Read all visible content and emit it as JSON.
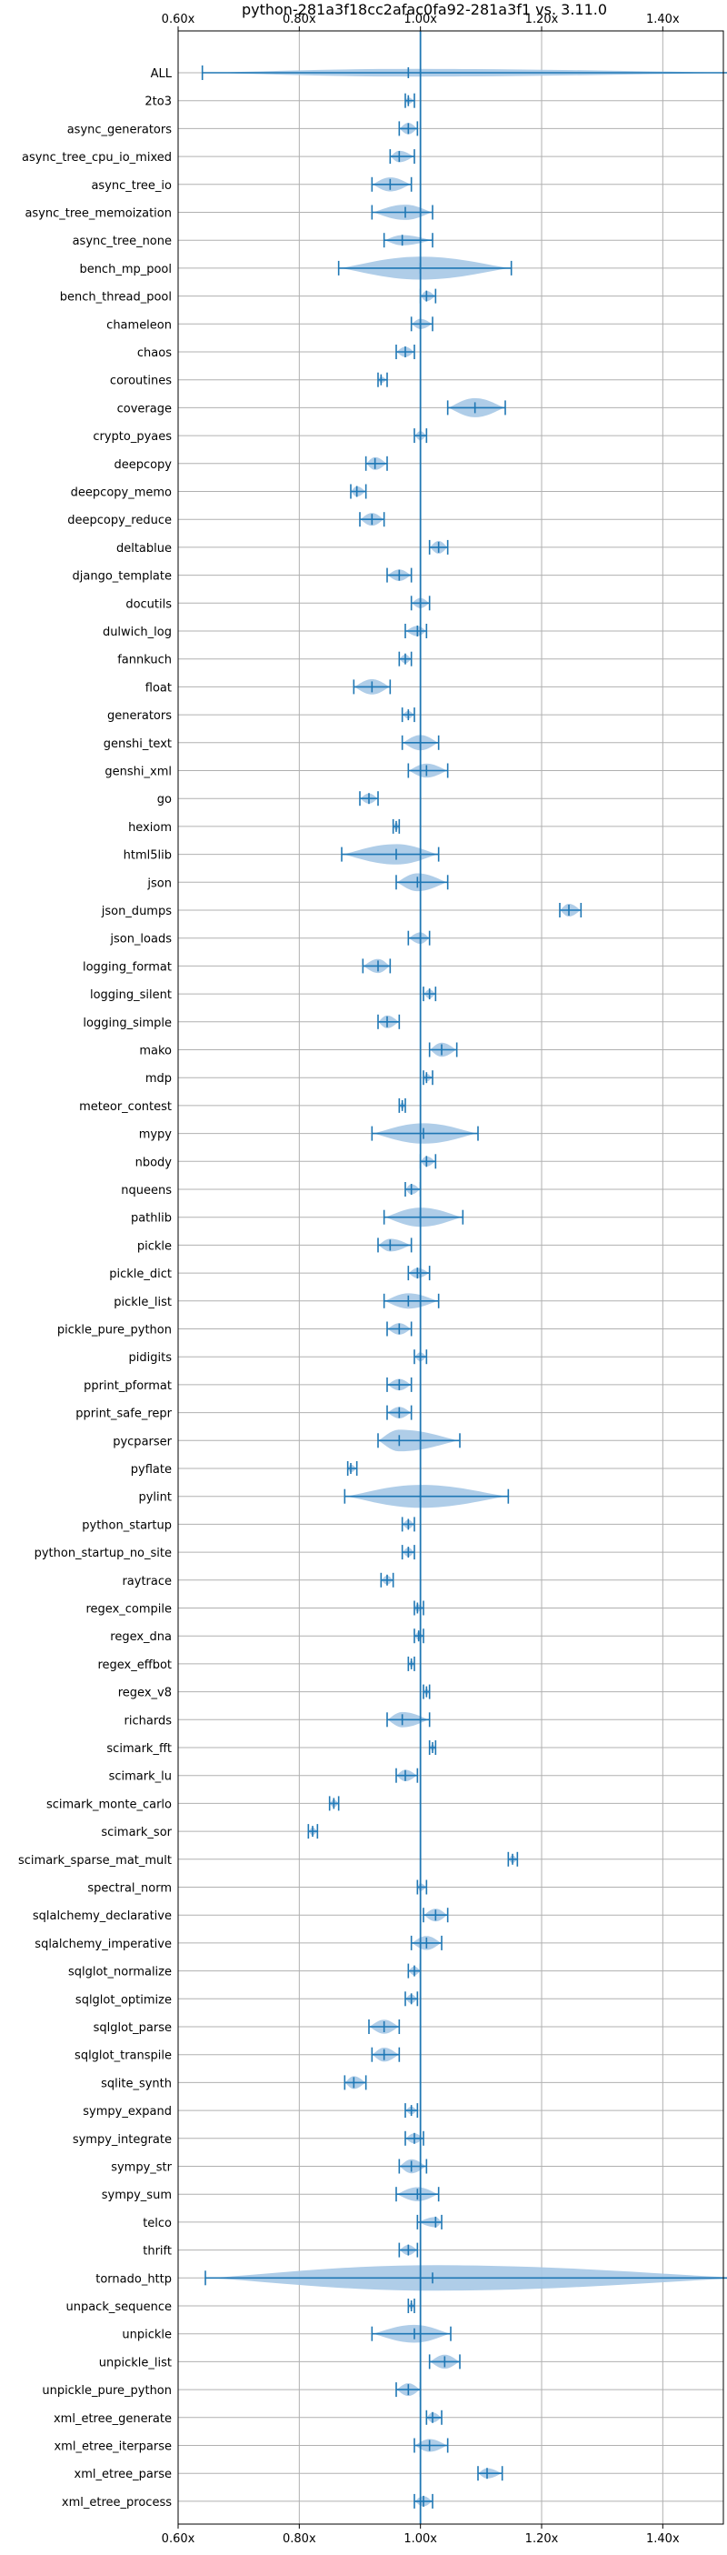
{
  "chart_data": {
    "type": "violin",
    "title": "python-281a3f18cc2afac0fa92-281a3f1 vs. 3.11.0",
    "xlim": [
      0.6,
      1.5
    ],
    "xticks": [
      0.6,
      0.8,
      1.0,
      1.2,
      1.4
    ],
    "xtick_labels": [
      "0.60x",
      "0.80x",
      "1.00x",
      "1.20x",
      "1.40x"
    ],
    "reference_line": 1.0,
    "grid": true,
    "colors": {
      "violin": "#a6c8e6",
      "line": "#1f77b4",
      "axes": "#000000",
      "grid": "#b0b0b0"
    },
    "series": [
      {
        "name": "ALL",
        "min": 0.64,
        "max": 1.54,
        "median": 0.98,
        "width": 0.3
      },
      {
        "name": "2to3",
        "min": 0.975,
        "max": 0.99,
        "median": 0.98,
        "width": 0.25
      },
      {
        "name": "async_generators",
        "min": 0.965,
        "max": 0.995,
        "median": 0.98,
        "width": 0.45
      },
      {
        "name": "async_tree_cpu_io_mixed",
        "min": 0.95,
        "max": 0.99,
        "median": 0.965,
        "width": 0.45
      },
      {
        "name": "async_tree_io",
        "min": 0.92,
        "max": 0.985,
        "median": 0.95,
        "width": 0.55
      },
      {
        "name": "async_tree_memoization",
        "min": 0.92,
        "max": 1.02,
        "median": 0.975,
        "width": 0.6
      },
      {
        "name": "async_tree_none",
        "min": 0.94,
        "max": 1.02,
        "median": 0.97,
        "width": 0.4
      },
      {
        "name": "bench_mp_pool",
        "min": 0.865,
        "max": 1.15,
        "median": 1.0,
        "width": 0.9
      },
      {
        "name": "bench_thread_pool",
        "min": 1.0,
        "max": 1.025,
        "median": 1.01,
        "width": 0.4
      },
      {
        "name": "chameleon",
        "min": 0.985,
        "max": 1.02,
        "median": 1.0,
        "width": 0.4
      },
      {
        "name": "chaos",
        "min": 0.96,
        "max": 0.99,
        "median": 0.975,
        "width": 0.4
      },
      {
        "name": "coroutines",
        "min": 0.93,
        "max": 0.945,
        "median": 0.935,
        "width": 0.25
      },
      {
        "name": "coverage",
        "min": 1.045,
        "max": 1.14,
        "median": 1.09,
        "width": 0.75
      },
      {
        "name": "crypto_pyaes",
        "min": 0.99,
        "max": 1.01,
        "median": 1.0,
        "width": 0.35
      },
      {
        "name": "deepcopy",
        "min": 0.91,
        "max": 0.945,
        "median": 0.925,
        "width": 0.5
      },
      {
        "name": "deepcopy_memo",
        "min": 0.885,
        "max": 0.91,
        "median": 0.895,
        "width": 0.4
      },
      {
        "name": "deepcopy_reduce",
        "min": 0.9,
        "max": 0.94,
        "median": 0.92,
        "width": 0.5
      },
      {
        "name": "deltablue",
        "min": 1.015,
        "max": 1.045,
        "median": 1.03,
        "width": 0.5
      },
      {
        "name": "django_template",
        "min": 0.945,
        "max": 0.985,
        "median": 0.965,
        "width": 0.45
      },
      {
        "name": "docutils",
        "min": 0.985,
        "max": 1.015,
        "median": 1.0,
        "width": 0.4
      },
      {
        "name": "dulwich_log",
        "min": 0.975,
        "max": 1.01,
        "median": 0.995,
        "width": 0.4
      },
      {
        "name": "fannkuch",
        "min": 0.965,
        "max": 0.985,
        "median": 0.975,
        "width": 0.35
      },
      {
        "name": "float",
        "min": 0.89,
        "max": 0.95,
        "median": 0.92,
        "width": 0.6
      },
      {
        "name": "generators",
        "min": 0.97,
        "max": 0.99,
        "median": 0.98,
        "width": 0.3
      },
      {
        "name": "genshi_text",
        "min": 0.97,
        "max": 1.03,
        "median": 1.0,
        "width": 0.6
      },
      {
        "name": "genshi_xml",
        "min": 0.98,
        "max": 1.045,
        "median": 1.01,
        "width": 0.55
      },
      {
        "name": "go",
        "min": 0.9,
        "max": 0.93,
        "median": 0.915,
        "width": 0.4
      },
      {
        "name": "hexiom",
        "min": 0.955,
        "max": 0.965,
        "median": 0.96,
        "width": 0.3
      },
      {
        "name": "html5lib",
        "min": 0.87,
        "max": 1.03,
        "median": 0.96,
        "width": 0.8
      },
      {
        "name": "json",
        "min": 0.96,
        "max": 1.045,
        "median": 0.995,
        "width": 0.7
      },
      {
        "name": "json_dumps",
        "min": 1.23,
        "max": 1.265,
        "median": 1.245,
        "width": 0.5
      },
      {
        "name": "json_loads",
        "min": 0.98,
        "max": 1.015,
        "median": 1.0,
        "width": 0.45
      },
      {
        "name": "logging_format",
        "min": 0.905,
        "max": 0.95,
        "median": 0.93,
        "width": 0.55
      },
      {
        "name": "logging_silent",
        "min": 1.005,
        "max": 1.025,
        "median": 1.015,
        "width": 0.35
      },
      {
        "name": "logging_simple",
        "min": 0.93,
        "max": 0.965,
        "median": 0.945,
        "width": 0.5
      },
      {
        "name": "mako",
        "min": 1.015,
        "max": 1.06,
        "median": 1.035,
        "width": 0.55
      },
      {
        "name": "mdp",
        "min": 1.005,
        "max": 1.02,
        "median": 1.01,
        "width": 0.3
      },
      {
        "name": "meteor_contest",
        "min": 0.965,
        "max": 0.975,
        "median": 0.97,
        "width": 0.25
      },
      {
        "name": "mypy",
        "min": 0.92,
        "max": 1.095,
        "median": 1.005,
        "width": 0.8
      },
      {
        "name": "nbody",
        "min": 1.0,
        "max": 1.025,
        "median": 1.01,
        "width": 0.4
      },
      {
        "name": "nqueens",
        "min": 0.975,
        "max": 1.0,
        "median": 0.985,
        "width": 0.4
      },
      {
        "name": "pathlib",
        "min": 0.94,
        "max": 1.07,
        "median": 1.0,
        "width": 0.75
      },
      {
        "name": "pickle",
        "min": 0.93,
        "max": 0.985,
        "median": 0.95,
        "width": 0.5
      },
      {
        "name": "pickle_dict",
        "min": 0.98,
        "max": 1.015,
        "median": 0.995,
        "width": 0.4
      },
      {
        "name": "pickle_list",
        "min": 0.94,
        "max": 1.03,
        "median": 0.98,
        "width": 0.6
      },
      {
        "name": "pickle_pure_python",
        "min": 0.945,
        "max": 0.985,
        "median": 0.965,
        "width": 0.45
      },
      {
        "name": "pidigits",
        "min": 0.99,
        "max": 1.01,
        "median": 1.0,
        "width": 0.35
      },
      {
        "name": "pprint_pformat",
        "min": 0.945,
        "max": 0.985,
        "median": 0.965,
        "width": 0.45
      },
      {
        "name": "pprint_safe_repr",
        "min": 0.945,
        "max": 0.985,
        "median": 0.965,
        "width": 0.45
      },
      {
        "name": "pycparser",
        "min": 0.93,
        "max": 1.065,
        "median": 0.965,
        "width": 0.85
      },
      {
        "name": "pyflate",
        "min": 0.88,
        "max": 0.895,
        "median": 0.885,
        "width": 0.3
      },
      {
        "name": "pylint",
        "min": 0.875,
        "max": 1.145,
        "median": 1.0,
        "width": 0.9
      },
      {
        "name": "python_startup",
        "min": 0.97,
        "max": 0.99,
        "median": 0.98,
        "width": 0.35
      },
      {
        "name": "python_startup_no_site",
        "min": 0.97,
        "max": 0.99,
        "median": 0.98,
        "width": 0.35
      },
      {
        "name": "raytrace",
        "min": 0.935,
        "max": 0.955,
        "median": 0.945,
        "width": 0.35
      },
      {
        "name": "regex_compile",
        "min": 0.99,
        "max": 1.005,
        "median": 0.995,
        "width": 0.3
      },
      {
        "name": "regex_dna",
        "min": 0.99,
        "max": 1.005,
        "median": 0.997,
        "width": 0.3
      },
      {
        "name": "regex_effbot",
        "min": 0.98,
        "max": 0.99,
        "median": 0.985,
        "width": 0.25
      },
      {
        "name": "regex_v8",
        "min": 1.005,
        "max": 1.015,
        "median": 1.01,
        "width": 0.25
      },
      {
        "name": "richards",
        "min": 0.945,
        "max": 1.015,
        "median": 0.97,
        "width": 0.6
      },
      {
        "name": "scimark_fft",
        "min": 1.015,
        "max": 1.025,
        "median": 1.02,
        "width": 0.25
      },
      {
        "name": "scimark_lu",
        "min": 0.96,
        "max": 0.995,
        "median": 0.975,
        "width": 0.45
      },
      {
        "name": "scimark_monte_carlo",
        "min": 0.85,
        "max": 0.865,
        "median": 0.857,
        "width": 0.3
      },
      {
        "name": "scimark_sor",
        "min": 0.815,
        "max": 0.83,
        "median": 0.822,
        "width": 0.3
      },
      {
        "name": "scimark_sparse_mat_mult",
        "min": 1.145,
        "max": 1.16,
        "median": 1.152,
        "width": 0.3
      },
      {
        "name": "spectral_norm",
        "min": 0.995,
        "max": 1.01,
        "median": 1.0,
        "width": 0.3
      },
      {
        "name": "sqlalchemy_declarative",
        "min": 1.005,
        "max": 1.045,
        "median": 1.025,
        "width": 0.5
      },
      {
        "name": "sqlalchemy_imperative",
        "min": 0.985,
        "max": 1.035,
        "median": 1.01,
        "width": 0.55
      },
      {
        "name": "sqlglot_normalize",
        "min": 0.98,
        "max": 1.0,
        "median": 0.99,
        "width": 0.35
      },
      {
        "name": "sqlglot_optimize",
        "min": 0.975,
        "max": 0.995,
        "median": 0.985,
        "width": 0.35
      },
      {
        "name": "sqlglot_parse",
        "min": 0.915,
        "max": 0.965,
        "median": 0.94,
        "width": 0.55
      },
      {
        "name": "sqlglot_transpile",
        "min": 0.92,
        "max": 0.965,
        "median": 0.94,
        "width": 0.55
      },
      {
        "name": "sqlite_synth",
        "min": 0.875,
        "max": 0.91,
        "median": 0.89,
        "width": 0.5
      },
      {
        "name": "sympy_expand",
        "min": 0.975,
        "max": 0.995,
        "median": 0.985,
        "width": 0.3
      },
      {
        "name": "sympy_integrate",
        "min": 0.975,
        "max": 1.005,
        "median": 0.99,
        "width": 0.4
      },
      {
        "name": "sympy_str",
        "min": 0.965,
        "max": 1.01,
        "median": 0.985,
        "width": 0.55
      },
      {
        "name": "sympy_sum",
        "min": 0.96,
        "max": 1.03,
        "median": 0.995,
        "width": 0.55
      },
      {
        "name": "telco",
        "min": 0.995,
        "max": 1.035,
        "median": 1.025,
        "width": 0.4
      },
      {
        "name": "thrift",
        "min": 0.965,
        "max": 0.995,
        "median": 0.98,
        "width": 0.4
      },
      {
        "name": "tornado_http",
        "min": 0.645,
        "max": 1.54,
        "median": 1.02,
        "width": 1.0
      },
      {
        "name": "unpack_sequence",
        "min": 0.98,
        "max": 0.99,
        "median": 0.985,
        "width": 0.25
      },
      {
        "name": "unpickle",
        "min": 0.92,
        "max": 1.05,
        "median": 0.99,
        "width": 0.7
      },
      {
        "name": "unpickle_list",
        "min": 1.015,
        "max": 1.065,
        "median": 1.04,
        "width": 0.55
      },
      {
        "name": "unpickle_pure_python",
        "min": 0.96,
        "max": 1.0,
        "median": 0.98,
        "width": 0.5
      },
      {
        "name": "xml_etree_generate",
        "min": 1.01,
        "max": 1.035,
        "median": 1.02,
        "width": 0.4
      },
      {
        "name": "xml_etree_iterparse",
        "min": 0.99,
        "max": 1.045,
        "median": 1.015,
        "width": 0.5
      },
      {
        "name": "xml_etree_parse",
        "min": 1.095,
        "max": 1.135,
        "median": 1.11,
        "width": 0.4
      },
      {
        "name": "xml_etree_process",
        "min": 0.99,
        "max": 1.02,
        "median": 1.005,
        "width": 0.4
      }
    ]
  }
}
